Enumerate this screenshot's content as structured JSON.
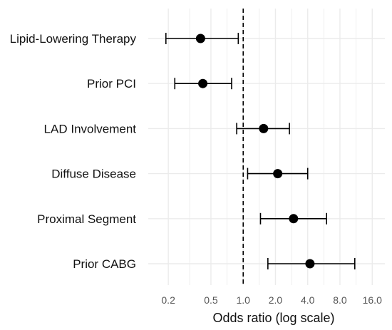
{
  "chart_data": {
    "type": "scatter",
    "subtype": "forest-plot",
    "title": "",
    "xlabel": "Odds ratio (log scale)",
    "ylabel": "",
    "x_scale": "log",
    "xlim": [
      0.13,
      21
    ],
    "x_ticks": [
      0.2,
      0.5,
      1.0,
      2.0,
      4.0,
      8.0,
      16.0
    ],
    "x_tick_labels": [
      "0.2",
      "0.5",
      "1.0",
      "2.0",
      "4.0",
      "8.0",
      "16.0"
    ],
    "reference_line": 1.0,
    "grid": true,
    "legend": "none",
    "rows": [
      {
        "label": "Lipid-Lowering Therapy",
        "or": 0.4,
        "lower": 0.19,
        "upper": 0.9
      },
      {
        "label": "Prior PCI",
        "or": 0.42,
        "lower": 0.23,
        "upper": 0.78
      },
      {
        "label": "LAD Involvement",
        "or": 1.55,
        "lower": 0.87,
        "upper": 2.7
      },
      {
        "label": "Diffuse Disease",
        "or": 2.1,
        "lower": 1.1,
        "upper": 4.0
      },
      {
        "label": "Proximal Segment",
        "or": 2.95,
        "lower": 1.45,
        "upper": 6.0
      },
      {
        "label": "Prior CABG",
        "or": 4.2,
        "lower": 1.7,
        "upper": 11.0
      }
    ],
    "colors": {
      "point": "#000000",
      "whisker": "#000000",
      "grid": "#ebebeb",
      "reference": "#000000"
    }
  }
}
